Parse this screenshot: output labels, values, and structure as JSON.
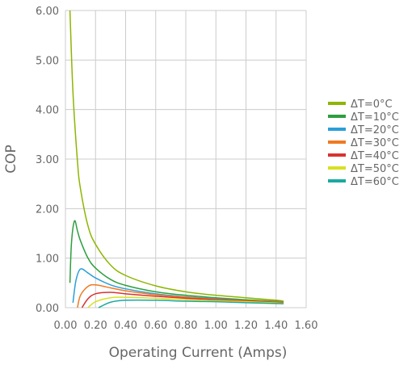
{
  "chart_data": {
    "type": "line",
    "title": "",
    "xlabel": "Operating Current (Amps)",
    "ylabel": "COP",
    "xlim": [
      0,
      1.6
    ],
    "ylim": [
      0,
      6
    ],
    "x_ticks": [
      "0.00",
      "0.20",
      "0.40",
      "0.60",
      "0.80",
      "1.00",
      "1.20",
      "1.40",
      "1.60"
    ],
    "y_ticks": [
      "0.00",
      "1.00",
      "2.00",
      "3.00",
      "4.00",
      "5.00",
      "6.00"
    ],
    "grid": true,
    "legend_position": "right",
    "series": [
      {
        "name": "ΔT=0°C",
        "color": "#8db600",
        "x": [
          0.03,
          0.05,
          0.08,
          0.1,
          0.15,
          0.2,
          0.3,
          0.4,
          0.6,
          0.8,
          1.0,
          1.2,
          1.4,
          1.45
        ],
        "y": [
          6.0,
          4.35,
          2.95,
          2.4,
          1.65,
          1.28,
          0.86,
          0.65,
          0.44,
          0.32,
          0.25,
          0.2,
          0.15,
          0.13
        ]
      },
      {
        "name": "ΔT=10°C",
        "color": "#2e9e3e",
        "x": [
          0.03,
          0.04,
          0.06,
          0.08,
          0.1,
          0.15,
          0.2,
          0.3,
          0.4,
          0.6,
          0.8,
          1.0,
          1.2,
          1.45
        ],
        "y": [
          0.5,
          1.3,
          1.75,
          1.55,
          1.35,
          1.0,
          0.8,
          0.57,
          0.45,
          0.32,
          0.25,
          0.2,
          0.16,
          0.12
        ]
      },
      {
        "name": "ΔT=20°C",
        "color": "#2b9fd8",
        "x": [
          0.05,
          0.07,
          0.1,
          0.15,
          0.2,
          0.3,
          0.4,
          0.6,
          0.8,
          1.0,
          1.2,
          1.45
        ],
        "y": [
          0.1,
          0.55,
          0.78,
          0.7,
          0.6,
          0.46,
          0.38,
          0.28,
          0.22,
          0.18,
          0.14,
          0.11
        ]
      },
      {
        "name": "ΔT=30°C",
        "color": "#f07922",
        "x": [
          0.08,
          0.1,
          0.15,
          0.2,
          0.3,
          0.4,
          0.6,
          0.8,
          1.0,
          1.2,
          1.45
        ],
        "y": [
          0.0,
          0.25,
          0.43,
          0.46,
          0.4,
          0.34,
          0.26,
          0.21,
          0.17,
          0.14,
          0.11
        ]
      },
      {
        "name": "ΔT=40°C",
        "color": "#d93232",
        "x": [
          0.11,
          0.15,
          0.2,
          0.3,
          0.4,
          0.6,
          0.8,
          1.0,
          1.2,
          1.45
        ],
        "y": [
          0.0,
          0.18,
          0.28,
          0.31,
          0.28,
          0.23,
          0.19,
          0.16,
          0.13,
          0.1
        ]
      },
      {
        "name": "ΔT=50°C",
        "color": "#d9e021",
        "x": [
          0.15,
          0.2,
          0.3,
          0.4,
          0.6,
          0.8,
          1.0,
          1.2,
          1.45
        ],
        "y": [
          0.0,
          0.12,
          0.2,
          0.21,
          0.19,
          0.16,
          0.14,
          0.12,
          0.09
        ]
      },
      {
        "name": "ΔT=60°C",
        "color": "#1aa9a0",
        "x": [
          0.22,
          0.3,
          0.4,
          0.6,
          0.8,
          1.0,
          1.2,
          1.45
        ],
        "y": [
          0.0,
          0.11,
          0.15,
          0.15,
          0.13,
          0.12,
          0.1,
          0.08
        ]
      }
    ]
  }
}
